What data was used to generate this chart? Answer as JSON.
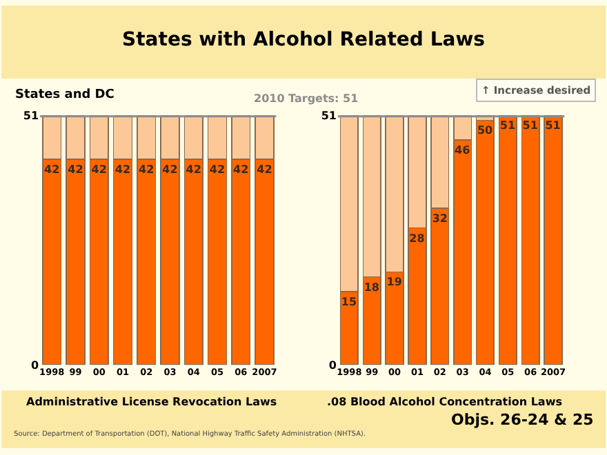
{
  "chart_data": [
    {
      "type": "bar",
      "title": "States with Alcohol Related Laws",
      "ylabel": "States and DC",
      "xlabel": "Administrative License Revocation Laws",
      "stacked": true,
      "categories": [
        "1998",
        "99",
        "00",
        "01",
        "02",
        "03",
        "04",
        "05",
        "06",
        "2007"
      ],
      "series": [
        {
          "color": "#ff6600",
          "values": [
            42,
            42,
            42,
            42,
            42,
            42,
            42,
            42,
            42,
            42
          ],
          "value_labels": [
            "42",
            "42",
            "42",
            "42",
            "42",
            "42",
            "42",
            "42",
            "42",
            "42"
          ]
        },
        {
          "color": "#fcc898",
          "values": [
            9,
            9,
            9,
            9,
            9,
            9,
            9,
            9,
            9,
            9
          ]
        }
      ],
      "ylim": [
        0,
        51
      ],
      "yticks": [
        0,
        51
      ],
      "ref_lines": [
        {
          "axis": "y",
          "value": 51,
          "label": "2010 Targets: 51",
          "color": "#8c8c8c"
        }
      ]
    },
    {
      "type": "bar",
      "xlabel": ".08 Blood Alcohol Concentration Laws",
      "stacked": true,
      "categories": [
        "1998",
        "99",
        "00",
        "01",
        "02",
        "03",
        "04",
        "05",
        "06",
        "2007"
      ],
      "series": [
        {
          "color": "#ff6600",
          "values": [
            15,
            18,
            19,
            28,
            32,
            46,
            50,
            51,
            51,
            51
          ],
          "value_labels": [
            "15",
            "18",
            "19",
            "28",
            "32",
            "46",
            "50",
            "51",
            "51",
            "51"
          ]
        },
        {
          "color": "#fcc898",
          "values": [
            36,
            33,
            32,
            23,
            19,
            5,
            1,
            0,
            0,
            0
          ]
        }
      ],
      "ylim": [
        0,
        51
      ],
      "yticks": [
        0,
        51
      ],
      "ref_lines": [
        {
          "axis": "y",
          "value": 51,
          "color": "#8c8c8c"
        }
      ],
      "annotations": [
        "↑ Increase desired",
        "Source: Department of Transportation (DOT), National Highway Traffic Safety Administration (NHTSA).",
        "Objs. 26-24 & 25"
      ]
    }
  ]
}
